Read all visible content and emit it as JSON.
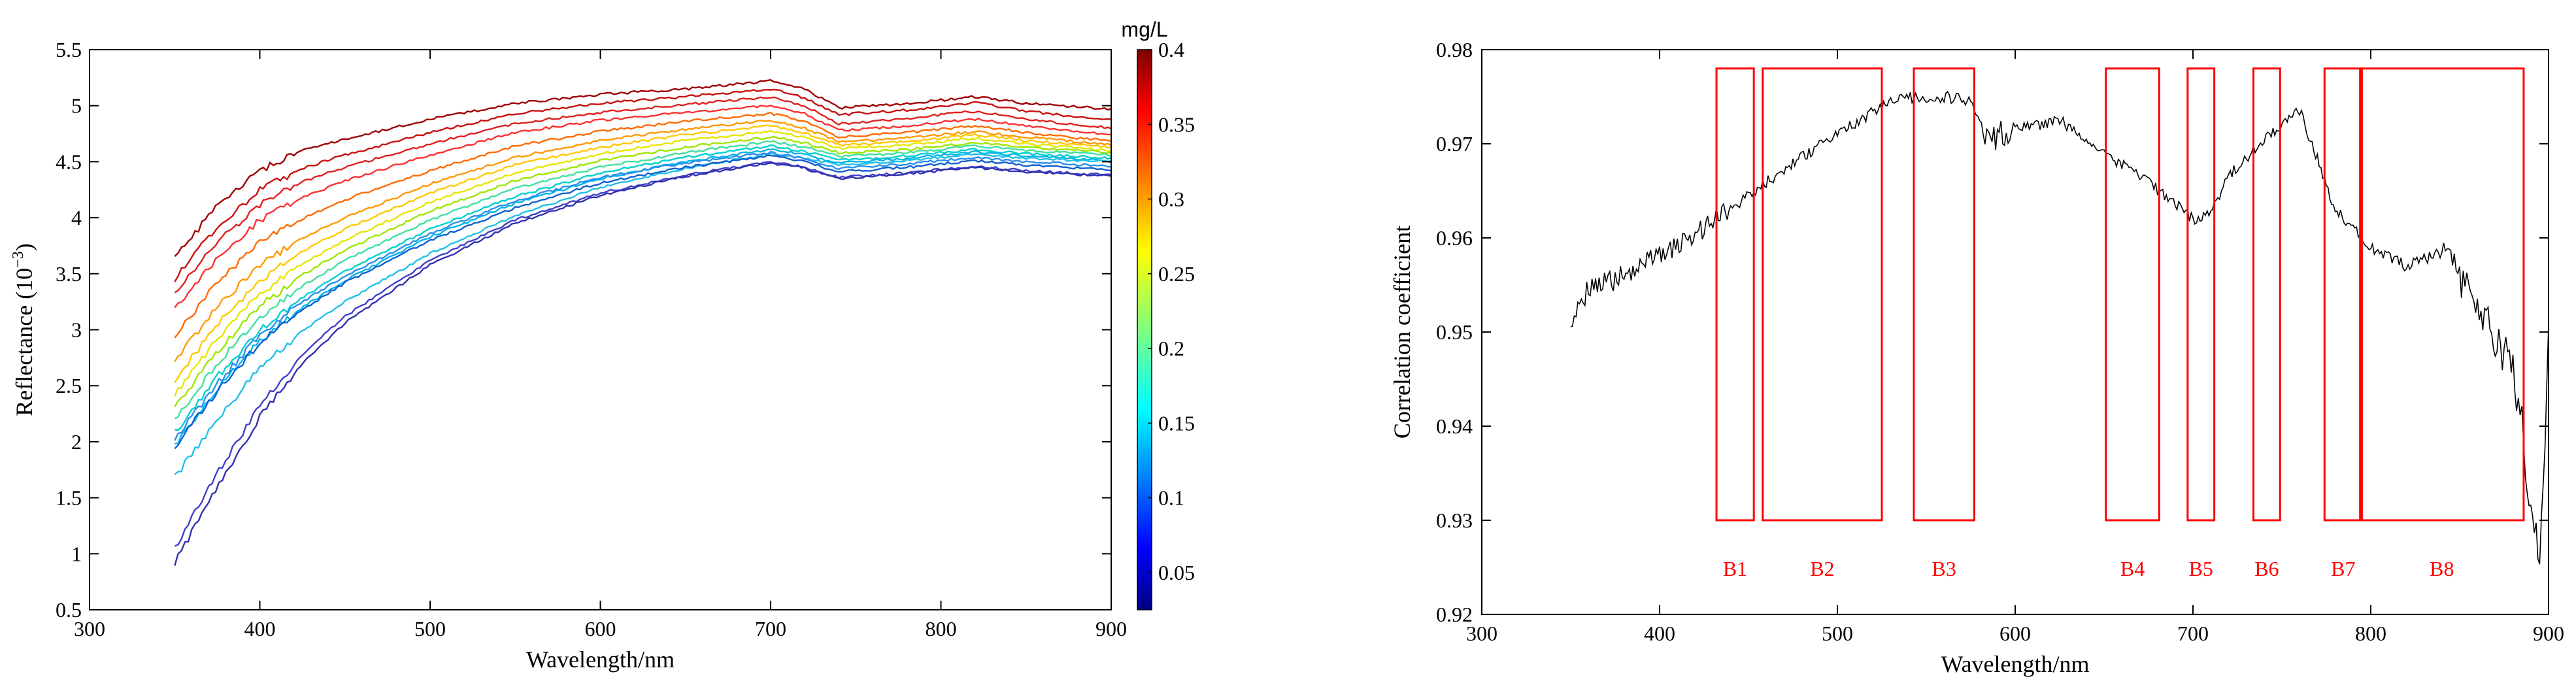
{
  "chart_data": [
    {
      "type": "line",
      "title": "",
      "xlabel": "Wavelength/nm",
      "ylabel": "Reflectance (10",
      "ylabel_exp": "−3",
      "ylabel_close": ")",
      "xlim": [
        300,
        900
      ],
      "ylim": [
        0.5,
        5.5
      ],
      "xticks": [
        "300",
        "400",
        "500",
        "600",
        "700",
        "800",
        "900"
      ],
      "yticks": [
        "0.5",
        "1",
        "1.5",
        "2",
        "2.5",
        "3",
        "3.5",
        "4",
        "4.5",
        "5",
        "5.5"
      ],
      "colorbar": {
        "label": "mg/L",
        "range": [
          0.025,
          0.4
        ],
        "ticks": [
          "0.4",
          "0.35",
          "0.3",
          "0.25",
          "0.2",
          "0.15",
          "0.1",
          "0.05"
        ],
        "colormap": "jet"
      },
      "x": [
        350,
        375,
        400,
        425,
        450,
        500,
        550,
        600,
        650,
        700,
        720,
        740,
        760,
        780,
        800,
        820,
        850,
        900
      ],
      "series": [
        {
          "concentration": 0.4,
          "color": "#a00000",
          "values": [
            3.65,
            4.1,
            4.42,
            4.6,
            4.7,
            4.88,
            5.02,
            5.1,
            5.15,
            5.22,
            5.15,
            4.98,
            5.0,
            5.02,
            5.05,
            5.08,
            5.02,
            4.97
          ]
        },
        {
          "concentration": 0.38,
          "color": "#c81010",
          "values": [
            3.45,
            3.92,
            4.25,
            4.44,
            4.56,
            4.76,
            4.93,
            5.02,
            5.08,
            5.15,
            5.07,
            4.92,
            4.94,
            4.96,
            4.99,
            5.03,
            4.95,
            4.87
          ]
        },
        {
          "concentration": 0.36,
          "color": "#e02020",
          "values": [
            3.32,
            3.78,
            4.12,
            4.32,
            4.45,
            4.66,
            4.84,
            4.94,
            5.01,
            5.08,
            5.0,
            4.84,
            4.86,
            4.88,
            4.92,
            4.95,
            4.88,
            4.8
          ]
        },
        {
          "concentration": 0.34,
          "color": "#ff3030",
          "values": [
            3.2,
            3.64,
            3.98,
            4.18,
            4.33,
            4.56,
            4.76,
            4.87,
            4.94,
            5.0,
            4.93,
            4.78,
            4.8,
            4.82,
            4.85,
            4.88,
            4.82,
            4.74
          ]
        },
        {
          "concentration": 0.32,
          "color": "#ff6a00",
          "values": [
            2.95,
            3.42,
            3.78,
            3.99,
            4.16,
            4.42,
            4.64,
            4.77,
            4.86,
            4.93,
            4.86,
            4.72,
            4.74,
            4.76,
            4.79,
            4.82,
            4.76,
            4.68
          ]
        },
        {
          "concentration": 0.3,
          "color": "#ff9900",
          "values": [
            2.72,
            3.2,
            3.58,
            3.82,
            4.0,
            4.3,
            4.54,
            4.69,
            4.79,
            4.87,
            4.8,
            4.68,
            4.69,
            4.71,
            4.74,
            4.77,
            4.72,
            4.65
          ]
        },
        {
          "concentration": 0.28,
          "color": "#ffc800",
          "values": [
            2.55,
            3.05,
            3.44,
            3.7,
            3.9,
            4.22,
            4.47,
            4.63,
            4.74,
            4.82,
            4.76,
            4.65,
            4.66,
            4.68,
            4.71,
            4.74,
            4.69,
            4.63
          ]
        },
        {
          "concentration": 0.25,
          "color": "#e6e600",
          "values": [
            2.42,
            2.92,
            3.32,
            3.59,
            3.8,
            4.14,
            4.4,
            4.57,
            4.69,
            4.77,
            4.72,
            4.62,
            4.63,
            4.65,
            4.68,
            4.71,
            4.66,
            4.6
          ]
        },
        {
          "concentration": 0.22,
          "color": "#9ee600",
          "values": [
            2.3,
            2.8,
            3.21,
            3.49,
            3.71,
            4.06,
            4.33,
            4.51,
            4.63,
            4.72,
            4.67,
            4.58,
            4.59,
            4.61,
            4.64,
            4.67,
            4.63,
            4.58
          ]
        },
        {
          "concentration": 0.2,
          "color": "#40e0a0",
          "values": [
            2.2,
            2.7,
            3.11,
            3.39,
            3.62,
            3.98,
            4.26,
            4.45,
            4.58,
            4.68,
            4.63,
            4.55,
            4.56,
            4.58,
            4.61,
            4.64,
            4.6,
            4.56
          ]
        },
        {
          "concentration": 0.18,
          "color": "#00d0d0",
          "values": [
            2.08,
            2.58,
            3.0,
            3.29,
            3.52,
            3.9,
            4.19,
            4.4,
            4.54,
            4.64,
            4.59,
            4.52,
            4.53,
            4.55,
            4.58,
            4.61,
            4.57,
            4.53
          ]
        },
        {
          "concentration": 0.16,
          "color": "#00b4e6",
          "values": [
            1.97,
            2.47,
            2.9,
            3.2,
            3.44,
            3.83,
            4.13,
            4.35,
            4.5,
            4.61,
            4.56,
            4.49,
            4.51,
            4.53,
            4.56,
            4.59,
            4.55,
            4.51
          ]
        },
        {
          "concentration": 0.15,
          "color": "#20c0e8",
          "values": [
            1.68,
            2.2,
            2.66,
            2.99,
            3.25,
            3.68,
            4.02,
            4.27,
            4.44,
            4.57,
            4.53,
            4.47,
            4.49,
            4.51,
            4.54,
            4.57,
            4.53,
            4.5
          ]
        },
        {
          "concentration": 0.12,
          "color": "#2a8ff0",
          "values": [
            2.02,
            2.52,
            2.95,
            3.25,
            3.48,
            3.86,
            4.15,
            4.36,
            4.49,
            4.58,
            4.53,
            4.44,
            4.46,
            4.48,
            4.51,
            4.54,
            4.5,
            4.46
          ]
        },
        {
          "concentration": 0.1,
          "color": "#1060d0",
          "values": [
            1.95,
            2.45,
            2.88,
            3.18,
            3.42,
            3.8,
            4.09,
            4.31,
            4.45,
            4.55,
            4.5,
            4.41,
            4.43,
            4.45,
            4.48,
            4.51,
            4.47,
            4.43
          ]
        },
        {
          "concentration": 0.06,
          "color": "#4040c8",
          "values": [
            1.05,
            1.72,
            2.32,
            2.78,
            3.12,
            3.62,
            3.98,
            4.22,
            4.38,
            4.5,
            4.45,
            4.36,
            4.38,
            4.4,
            4.43,
            4.46,
            4.42,
            4.38
          ]
        },
        {
          "concentration": 0.04,
          "color": "#3030b0",
          "values": [
            0.92,
            1.6,
            2.22,
            2.7,
            3.06,
            3.58,
            3.95,
            4.2,
            4.37,
            4.49,
            4.44,
            4.35,
            4.37,
            4.39,
            4.42,
            4.45,
            4.41,
            4.37
          ]
        }
      ]
    },
    {
      "type": "line",
      "title": "",
      "xlabel": "Wavelength/nm",
      "ylabel": "Correlation coefficient",
      "xlim": [
        300,
        900
      ],
      "ylim": [
        0.92,
        0.98
      ],
      "xticks": [
        "300",
        "400",
        "500",
        "600",
        "700",
        "800",
        "900"
      ],
      "yticks": [
        "0.92",
        "0.93",
        "0.94",
        "0.95",
        "0.96",
        "0.97",
        "0.98"
      ],
      "x": [
        350,
        360,
        375,
        400,
        425,
        450,
        475,
        500,
        525,
        540,
        550,
        560,
        575,
        585,
        600,
        625,
        650,
        675,
        700,
        710,
        720,
        740,
        760,
        770,
        780,
        800,
        820,
        840,
        860,
        880,
        885,
        890,
        895,
        900
      ],
      "values": [
        0.9515,
        0.9545,
        0.9555,
        0.958,
        0.961,
        0.9645,
        0.968,
        0.971,
        0.974,
        0.975,
        0.9745,
        0.975,
        0.9745,
        0.9705,
        0.9715,
        0.9725,
        0.969,
        0.966,
        0.962,
        0.9625,
        0.9665,
        0.9705,
        0.9735,
        0.9685,
        0.963,
        0.959,
        0.957,
        0.9585,
        0.953,
        0.946,
        0.94,
        0.9315,
        0.925,
        0.949
      ],
      "series_color": "#000000",
      "bands": [
        {
          "label": "B1",
          "x0": 432,
          "x1": 453,
          "y0": 0.93,
          "y1": 0.978
        },
        {
          "label": "B2",
          "x0": 458,
          "x1": 525,
          "y0": 0.93,
          "y1": 0.978
        },
        {
          "label": "B3",
          "x0": 543,
          "x1": 577,
          "y0": 0.93,
          "y1": 0.978
        },
        {
          "label": "B4",
          "x0": 651,
          "x1": 681,
          "y0": 0.93,
          "y1": 0.978
        },
        {
          "label": "B5",
          "x0": 697,
          "x1": 712,
          "y0": 0.93,
          "y1": 0.978
        },
        {
          "label": "B6",
          "x0": 734,
          "x1": 749,
          "y0": 0.93,
          "y1": 0.978
        },
        {
          "label": "B7",
          "x0": 774,
          "x1": 795,
          "y0": 0.93,
          "y1": 0.978
        },
        {
          "label": "B8",
          "x0": 794,
          "x1": 886,
          "y0": 0.93,
          "y1": 0.978
        }
      ],
      "band_color": "#ff0000"
    }
  ]
}
